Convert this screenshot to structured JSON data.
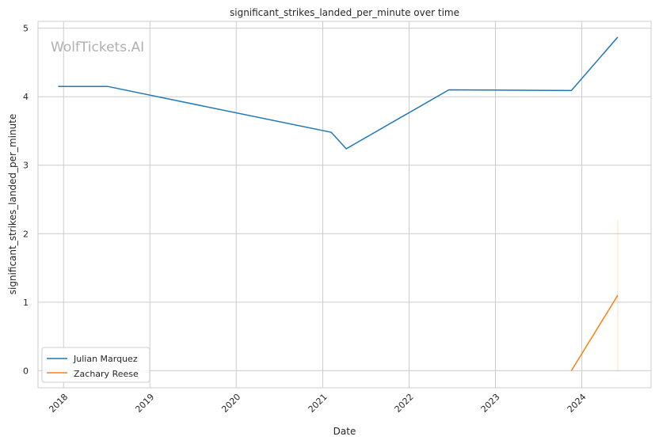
{
  "chart_data": {
    "type": "line",
    "title": "significant_strikes_landed_per_minute over time",
    "xlabel": "Date",
    "ylabel": "significant_strikes_landed_per_minute",
    "watermark": "WolfTickets.AI",
    "x_tick_labels": [
      "2018",
      "2019",
      "2020",
      "2021",
      "2022",
      "2023",
      "2024"
    ],
    "y_tick_labels": [
      "0",
      "1",
      "2",
      "3",
      "4",
      "5"
    ],
    "xlim": [
      "2017-09-15",
      "2024-10-20"
    ],
    "ylim": [
      -0.25,
      5.1
    ],
    "grid": true,
    "legend_position": "lower-left",
    "series": [
      {
        "name": "Julian Marquez",
        "color": "#1f77b4",
        "points": [
          {
            "x": "2017-12-09",
            "y": 4.15
          },
          {
            "x": "2018-07-06",
            "y": 4.15
          },
          {
            "x": "2021-02-06",
            "y": 3.48
          },
          {
            "x": "2021-04-10",
            "y": 3.24
          },
          {
            "x": "2022-06-18",
            "y": 4.1
          },
          {
            "x": "2023-11-18",
            "y": 4.09
          },
          {
            "x": "2024-06-01",
            "y": 4.87
          }
        ]
      },
      {
        "name": "Zachary Reese",
        "color": "#ff7f0e",
        "points": [
          {
            "x": "2023-11-18",
            "y": 0.0
          },
          {
            "x": "2024-06-01",
            "y": 1.1
          }
        ],
        "band": {
          "x": "2024-06-01",
          "low": 0.0,
          "high": 2.2
        }
      }
    ]
  }
}
